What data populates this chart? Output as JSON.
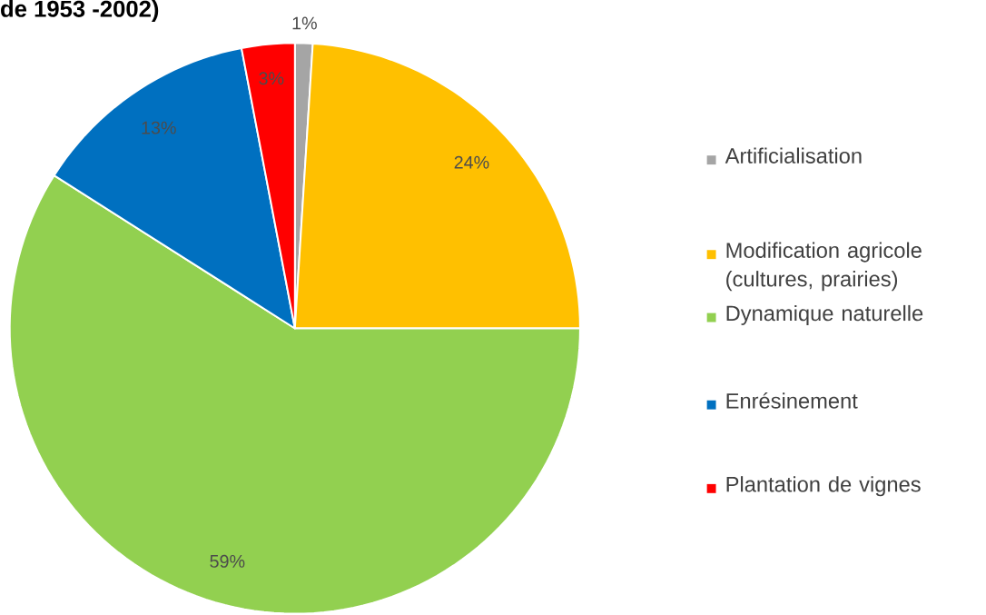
{
  "chart_data": {
    "type": "pie",
    "title": "de 1953 -2002)",
    "categories": [
      "Artificialisation",
      "Modification agricole (cultures, prairies)",
      "Dynamique naturelle",
      "Enrésinement",
      "Plantation de vignes"
    ],
    "values": [
      1,
      24,
      59,
      13,
      3
    ],
    "colors": [
      "#a5a5a5",
      "#ffc000",
      "#92d050",
      "#0070c0",
      "#ff0000"
    ],
    "value_labels": [
      "1%",
      "24%",
      "59%",
      "13%",
      "3%"
    ],
    "legend": "right"
  }
}
